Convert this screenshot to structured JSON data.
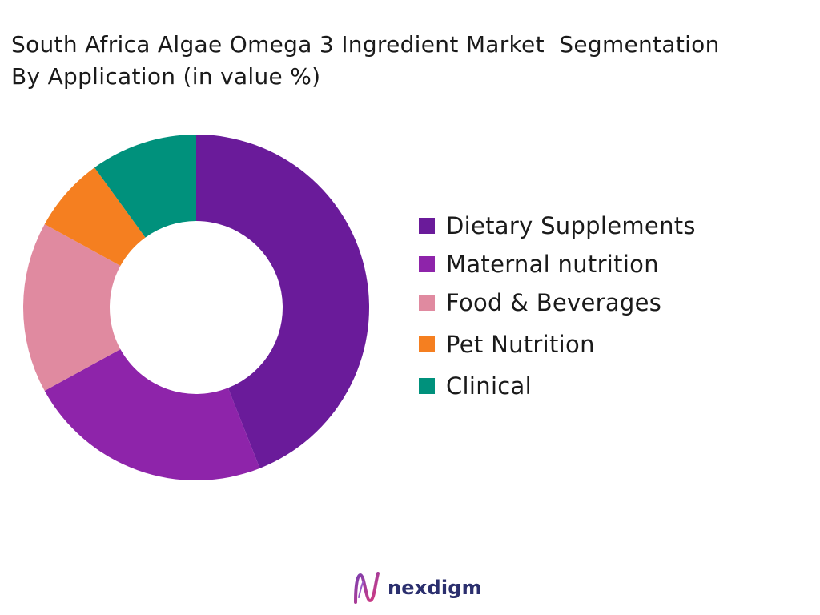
{
  "title_lines": [
    "South Africa Algae Omega 3 Ingredient Market  Segmentation",
    "By Application (in value %)"
  ],
  "brand": {
    "name": "nexdigm"
  },
  "chart_data": {
    "type": "pie",
    "donut": true,
    "title": "South Africa Algae Omega 3 Ingredient Market  Segmentation By Application (in value %)",
    "legend_position": "right",
    "slices": [
      {
        "label": "Dietary Supplements",
        "value": 44,
        "color": "#6a1b9a"
      },
      {
        "label": "Maternal nutrition",
        "value": 23,
        "color": "#8e24aa"
      },
      {
        "label": "Food & Beverages",
        "value": 16,
        "color": "#e08aa0"
      },
      {
        "label": "Pet Nutrition",
        "value": 7,
        "color": "#f57f20"
      },
      {
        "label": "Clinical",
        "value": 10,
        "color": "#00917c"
      }
    ]
  }
}
